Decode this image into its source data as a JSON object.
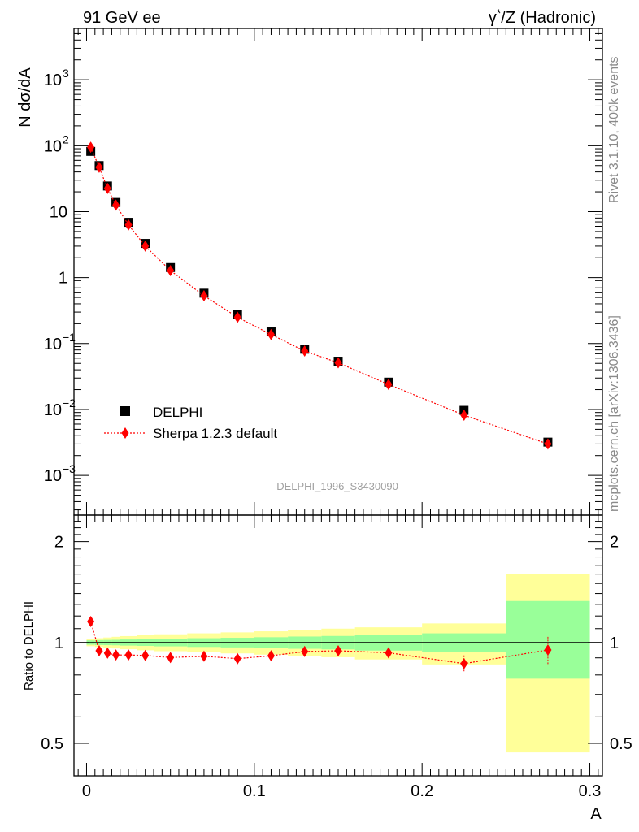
{
  "header": {
    "left": "91 GeV ee",
    "right_gamma": "γ",
    "right_star": "*",
    "right_rest": "/Z (Hadronic)"
  },
  "side_labels": {
    "rivet": "Rivet 3.1.10,  400k events",
    "mcplots": "mcplots.cern.ch [arXiv:1306.3436]"
  },
  "watermark": "DELPHI_1996_S3430090",
  "chart_data": [
    {
      "type": "scatter",
      "ylabel": "N dσ/dA",
      "xlim": [
        -0.0075,
        0.3075
      ],
      "ylim": [
        0.00025,
        6000
      ],
      "yscale": "log",
      "y_ticks": [
        {
          "value": 0.001,
          "base": "10",
          "exp": "−3"
        },
        {
          "value": 0.01,
          "base": "10",
          "exp": "−2"
        },
        {
          "value": 0.1,
          "base": "10",
          "exp": "−1"
        },
        {
          "value": 1,
          "base": "1",
          "exp": ""
        },
        {
          "value": 10,
          "base": "10",
          "exp": ""
        },
        {
          "value": 100,
          "base": "10",
          "exp": "2"
        },
        {
          "value": 1000,
          "base": "10",
          "exp": "3"
        }
      ],
      "legend_position": "lower-left",
      "series": [
        {
          "name": "DELPHI",
          "marker": "square",
          "color": "#000000",
          "x": [
            0.0025,
            0.0075,
            0.0125,
            0.0175,
            0.025,
            0.035,
            0.05,
            0.07,
            0.09,
            0.11,
            0.13,
            0.15,
            0.18,
            0.225,
            0.275
          ],
          "y": [
            82,
            50,
            24.5,
            13.8,
            6.9,
            3.3,
            1.42,
            0.58,
            0.28,
            0.15,
            0.082,
            0.054,
            0.026,
            0.0097,
            0.0032
          ]
        },
        {
          "name": "Sherpa 1.2.3 default",
          "marker": "diamond",
          "color": "#ff0000",
          "line": "dotted",
          "x": [
            0.0025,
            0.0075,
            0.0125,
            0.0175,
            0.025,
            0.035,
            0.05,
            0.07,
            0.09,
            0.11,
            0.13,
            0.15,
            0.18,
            0.225,
            0.275
          ],
          "y": [
            95,
            47,
            22.5,
            12.6,
            6.3,
            3.0,
            1.28,
            0.53,
            0.25,
            0.137,
            0.077,
            0.051,
            0.024,
            0.0082,
            0.003
          ]
        }
      ]
    },
    {
      "type": "scatter",
      "ylabel": "Ratio to DELPHI",
      "xlabel": "A",
      "xlim": [
        -0.0075,
        0.3075
      ],
      "ylim": [
        0.4,
        2.4
      ],
      "yscale": "log",
      "y_ticks": [
        {
          "value": 0.5,
          "label": "0.5"
        },
        {
          "value": 1,
          "label": "1"
        },
        {
          "value": 2,
          "label": "2"
        }
      ],
      "x_ticks": [
        {
          "value": 0,
          "label": "0"
        },
        {
          "value": 0.1,
          "label": "0.1"
        },
        {
          "value": 0.2,
          "label": "0.2"
        },
        {
          "value": 0.3,
          "label": "0.3"
        }
      ],
      "bands": {
        "bin_edges": [
          0,
          0.005,
          0.01,
          0.015,
          0.02,
          0.03,
          0.04,
          0.06,
          0.08,
          0.1,
          0.12,
          0.14,
          0.16,
          0.2,
          0.25,
          0.3
        ],
        "stat_low": [
          0.985,
          0.983,
          0.982,
          0.981,
          0.979,
          0.977,
          0.974,
          0.97,
          0.967,
          0.963,
          0.958,
          0.954,
          0.946,
          0.935,
          0.78
        ],
        "stat_high": [
          1.015,
          1.017,
          1.018,
          1.019,
          1.021,
          1.023,
          1.026,
          1.03,
          1.033,
          1.037,
          1.042,
          1.046,
          1.054,
          1.065,
          1.33
        ],
        "total_low": [
          0.975,
          0.97,
          0.965,
          0.96,
          0.955,
          0.948,
          0.942,
          0.935,
          0.928,
          0.92,
          0.912,
          0.904,
          0.89,
          0.86,
          0.47
        ],
        "total_high": [
          1.025,
          1.03,
          1.035,
          1.04,
          1.045,
          1.052,
          1.058,
          1.065,
          1.072,
          1.08,
          1.09,
          1.1,
          1.11,
          1.14,
          1.6
        ],
        "stat_color": "#99ff99",
        "total_color": "#ffff99"
      },
      "series": [
        {
          "name": "Sherpa 1.2.3 default",
          "marker": "diamond",
          "color": "#ff0000",
          "line": "dotted",
          "x": [
            0.0025,
            0.0075,
            0.0125,
            0.0175,
            0.025,
            0.035,
            0.05,
            0.07,
            0.09,
            0.11,
            0.13,
            0.15,
            0.18,
            0.225,
            0.275
          ],
          "y": [
            1.155,
            0.945,
            0.93,
            0.918,
            0.918,
            0.915,
            0.902,
            0.91,
            0.895,
            0.913,
            0.94,
            0.945,
            0.932,
            0.865,
            0.95
          ],
          "err": [
            0.012,
            0.008,
            0.008,
            0.008,
            0.008,
            0.008,
            0.008,
            0.01,
            0.012,
            0.015,
            0.018,
            0.02,
            0.025,
            0.05,
            0.09
          ]
        }
      ]
    }
  ]
}
